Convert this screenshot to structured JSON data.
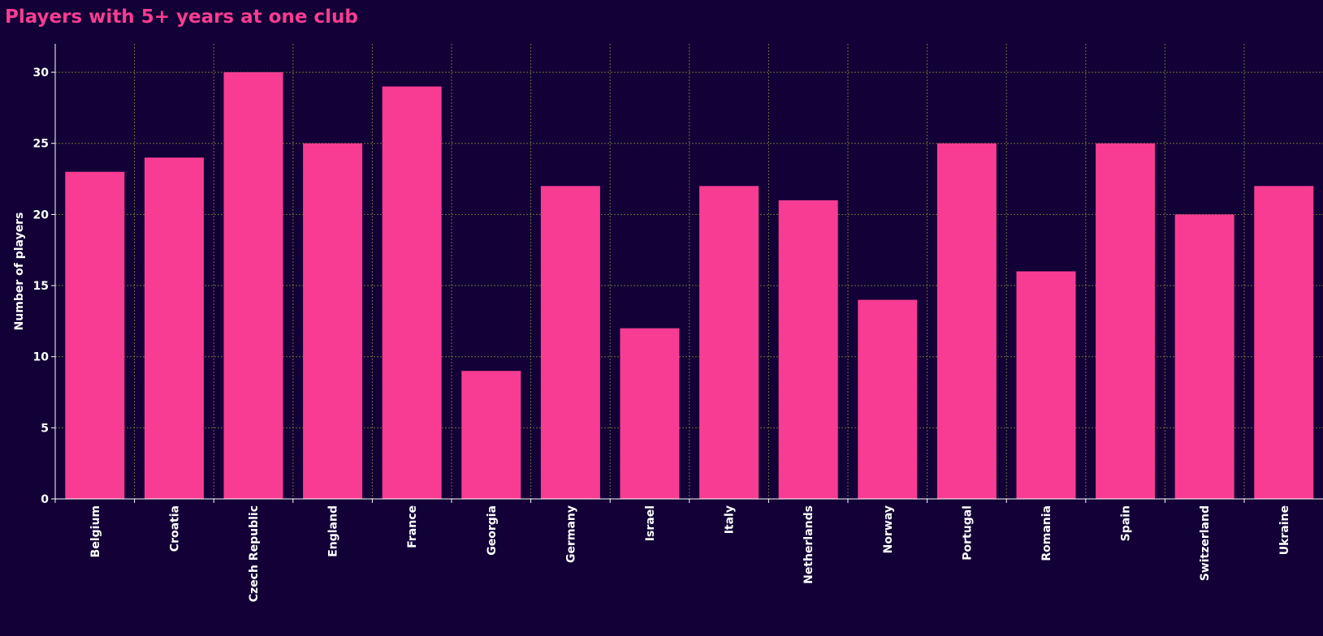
{
  "chart_data": {
    "type": "bar",
    "title": "Players with 5+ years at one club",
    "xlabel": "",
    "ylabel": "Number of players",
    "categories": [
      "Belgium",
      "Croatia",
      "Czech Republic",
      "England",
      "France",
      "Georgia",
      "Germany",
      "Israel",
      "Italy",
      "Netherlands",
      "Norway",
      "Portugal",
      "Romania",
      "Spain",
      "Switzerland",
      "Ukraine"
    ],
    "values": [
      23,
      24,
      30,
      25,
      29,
      9,
      22,
      12,
      22,
      21,
      14,
      25,
      16,
      25,
      20,
      22
    ],
    "ylim": [
      0,
      32
    ],
    "yticks": [
      0,
      5,
      10,
      15,
      20,
      25,
      30
    ],
    "grid": true,
    "legend": "none",
    "colors": {
      "background": "#120036",
      "bar": "#f93c93",
      "title": "#f93c93",
      "text": "#ffffff",
      "grid": "#8a8a3a"
    }
  }
}
